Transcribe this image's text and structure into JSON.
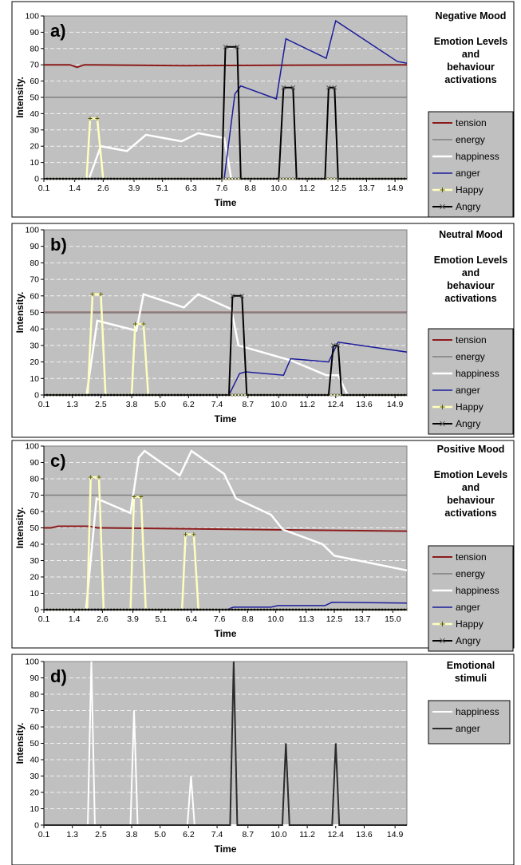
{
  "chart_data": [
    {
      "type": "line",
      "panel_label": "a)",
      "side_text": [
        "Negative Mood",
        "",
        "Emotion Levels",
        "and",
        "behaviour",
        "activations"
      ],
      "xlabel": "Time",
      "ylabel": "Intensity.",
      "xlim": [
        0.1,
        15.4
      ],
      "ylim": [
        0,
        100
      ],
      "yticks": [
        0,
        10,
        20,
        30,
        40,
        50,
        60,
        70,
        80,
        90,
        100
      ],
      "xtick_labels": [
        "0.1",
        "1.4",
        "2.6",
        "3.9",
        "5.1",
        "6.3",
        "7.6",
        "8.8",
        "10.0",
        "11.2",
        "12.5",
        "13.7",
        "14.9"
      ],
      "xtick_values": [
        0.1,
        1.4,
        2.6,
        3.9,
        5.1,
        6.3,
        7.6,
        8.8,
        10.0,
        11.2,
        12.5,
        13.7,
        14.9
      ],
      "series": [
        {
          "name": "tension",
          "color": "#8b1a1a",
          "width": 2,
          "x": [
            0.1,
            1.2,
            1.5,
            1.8,
            6.0,
            15.4
          ],
          "y": [
            70,
            70,
            68.5,
            70,
            69.5,
            70
          ]
        },
        {
          "name": "energy",
          "color": "#7f7f7f",
          "width": 1.5,
          "x": [
            0.1,
            15.4
          ],
          "y": [
            50,
            50
          ]
        },
        {
          "name": "happiness",
          "color": "#ffffff",
          "width": 2.5,
          "x": [
            0.1,
            2.0,
            2.5,
            3.6,
            4.4,
            5.9,
            6.6,
            7.7,
            8.0
          ],
          "y": [
            0,
            0,
            20,
            17,
            27,
            23,
            28,
            25,
            0
          ]
        },
        {
          "name": "anger",
          "color": "#1c1c9c",
          "width": 1.5,
          "x": [
            0.1,
            7.7,
            8.15,
            8.4,
            9.9,
            10.3,
            12.0,
            12.4,
            15.0,
            15.4
          ],
          "y": [
            0,
            0,
            52,
            57,
            49,
            86,
            74,
            97,
            72,
            71
          ]
        },
        {
          "name": "Happy",
          "color": "#ffffc0",
          "width": 2.5,
          "marker": "plus",
          "x": [
            0.1,
            1.9,
            2.05,
            2.35,
            2.6,
            15.4
          ],
          "y": [
            0,
            0,
            37,
            37,
            0,
            0
          ]
        },
        {
          "name": "Angry",
          "color": "#000000",
          "width": 2,
          "marker": "x",
          "x": [
            0.1,
            7.6,
            7.75,
            8.25,
            8.4,
            10.0,
            10.2,
            10.6,
            10.75,
            11.95,
            12.1,
            12.35,
            12.5,
            15.4
          ],
          "y": [
            0,
            0,
            81,
            81,
            0,
            0,
            56,
            56,
            0,
            0,
            56,
            56,
            0,
            0
          ]
        }
      ]
    },
    {
      "type": "line",
      "panel_label": "b)",
      "side_text": [
        "Neutral Mood",
        "",
        "Emotion Levels",
        "and",
        "behaviour",
        "activations"
      ],
      "xlabel": "Time",
      "ylabel": "Intensity.",
      "xlim": [
        0.1,
        15.4
      ],
      "ylim": [
        0,
        100
      ],
      "yticks": [
        0,
        10,
        20,
        30,
        40,
        50,
        60,
        70,
        80,
        90,
        100
      ],
      "xtick_labels": [
        "0.1",
        "1.3",
        "2.5",
        "3.8",
        "5.0",
        "6.2",
        "7.4",
        "8.7",
        "10.0",
        "11.2",
        "12.4",
        "13.6",
        "14.9"
      ],
      "xtick_values": [
        0.1,
        1.3,
        2.5,
        3.8,
        5.0,
        6.2,
        7.4,
        8.7,
        10.0,
        11.2,
        12.4,
        13.6,
        14.9
      ],
      "series": [
        {
          "name": "tension",
          "color": "#8b1a1a",
          "width": 2,
          "x": [
            0.1,
            12.3,
            12.7,
            15.4
          ],
          "y": [
            50,
            50,
            50,
            50
          ]
        },
        {
          "name": "energy",
          "color": "#7f7f7f",
          "width": 1.5,
          "x": [
            0.1,
            15.4
          ],
          "y": [
            50,
            50
          ]
        },
        {
          "name": "happiness",
          "color": "#ffffff",
          "width": 2.5,
          "x": [
            0.1,
            1.9,
            2.35,
            4.0,
            4.3,
            6.0,
            6.6,
            8.0,
            8.3,
            10.5,
            12.0,
            12.5,
            12.9,
            15.4
          ],
          "y": [
            0,
            0,
            45,
            39,
            61,
            53,
            61,
            52,
            30,
            21,
            12,
            12,
            0,
            0
          ]
        },
        {
          "name": "anger",
          "color": "#1c1c9c",
          "width": 1.5,
          "x": [
            0.1,
            7.9,
            8.35,
            8.6,
            10.2,
            10.5,
            12.1,
            12.5,
            15.4
          ],
          "y": [
            0,
            0,
            13,
            14,
            12,
            22,
            20,
            32,
            26
          ]
        },
        {
          "name": "Happy",
          "color": "#ffffc0",
          "width": 2.5,
          "marker": "plus",
          "x": [
            0.1,
            1.95,
            2.15,
            2.5,
            2.7,
            3.8,
            3.95,
            4.3,
            4.5,
            15.4
          ],
          "y": [
            0,
            0,
            61,
            61,
            0,
            0,
            43,
            43,
            0,
            0
          ]
        },
        {
          "name": "Angry",
          "color": "#000000",
          "width": 2,
          "marker": "x",
          "x": [
            0.1,
            7.9,
            8.05,
            8.45,
            8.65,
            12.1,
            12.3,
            12.5,
            12.65,
            15.4
          ],
          "y": [
            0,
            0,
            60,
            60,
            0,
            0,
            30,
            30,
            0,
            0
          ]
        }
      ]
    },
    {
      "type": "line",
      "panel_label": "c)",
      "side_text": [
        "Positive Mood",
        "",
        "Emotion Levels",
        "and",
        "behaviour",
        "activations"
      ],
      "xlabel": "Time",
      "ylabel": "Intensity.",
      "xlim": [
        0.1,
        15.6
      ],
      "ylim": [
        0,
        100
      ],
      "yticks": [
        0,
        10,
        20,
        30,
        40,
        50,
        60,
        70,
        80,
        90,
        100
      ],
      "xtick_labels": [
        "0.1",
        "1.4",
        "2.6",
        "3.9",
        "5.1",
        "6.4",
        "7.6",
        "8.8",
        "10.0",
        "11.3",
        "12.5",
        "13.7",
        "15.0"
      ],
      "xtick_values": [
        0.1,
        1.4,
        2.6,
        3.9,
        5.1,
        6.4,
        7.6,
        8.8,
        10.0,
        11.3,
        12.5,
        13.7,
        15.0
      ],
      "series": [
        {
          "name": "tension",
          "color": "#8b1a1a",
          "width": 2,
          "x": [
            0.1,
            0.4,
            0.7,
            2.0,
            2.4,
            15.6
          ],
          "y": [
            50,
            50,
            51,
            51,
            50,
            48
          ]
        },
        {
          "name": "energy",
          "color": "#7f7f7f",
          "width": 1.5,
          "x": [
            0.1,
            15.6
          ],
          "y": [
            70,
            70
          ]
        },
        {
          "name": "happiness",
          "color": "#ffffff",
          "width": 2.5,
          "x": [
            0.1,
            1.9,
            2.35,
            3.8,
            4.15,
            4.4,
            5.9,
            6.4,
            7.8,
            8.3,
            9.8,
            10.3,
            12.0,
            12.5,
            15.6
          ],
          "y": [
            0,
            0,
            68,
            59,
            93,
            97,
            82,
            97,
            83,
            68,
            58,
            49,
            40,
            33,
            24
          ]
        },
        {
          "name": "anger",
          "color": "#1c1c9c",
          "width": 1.5,
          "x": [
            0.1,
            7.9,
            8.2,
            9.8,
            10.1,
            12.1,
            12.4,
            15.6
          ],
          "y": [
            0,
            0,
            1.5,
            1.5,
            2.5,
            2.5,
            4.5,
            4
          ]
        },
        {
          "name": "Happy",
          "color": "#ffffc0",
          "width": 2.5,
          "marker": "plus",
          "x": [
            0.1,
            1.95,
            2.1,
            2.45,
            2.65,
            3.8,
            3.95,
            4.25,
            4.45,
            6.0,
            6.15,
            6.5,
            6.7,
            15.6
          ],
          "y": [
            0,
            0,
            81,
            81,
            0,
            0,
            69,
            69,
            0,
            0,
            46,
            46,
            0,
            0
          ]
        },
        {
          "name": "Angry",
          "color": "#000000",
          "width": 2,
          "marker": "x",
          "x": [
            0.1,
            15.6
          ],
          "y": [
            0,
            0
          ]
        }
      ]
    },
    {
      "type": "line",
      "panel_label": "d)",
      "side_text": [
        "Emotional",
        "stimuli"
      ],
      "xlabel": "Time",
      "ylabel": "Intensity.",
      "xlim": [
        0.1,
        15.4
      ],
      "ylim": [
        0,
        100
      ],
      "yticks": [
        0,
        10,
        20,
        30,
        40,
        50,
        60,
        70,
        80,
        90,
        100
      ],
      "xtick_labels": [
        "0.1",
        "1.3",
        "2.5",
        "3.8",
        "5.0",
        "6.2",
        "7.4",
        "8.7",
        "10.0",
        "11.2",
        "12.4",
        "13.6",
        "14.9"
      ],
      "xtick_values": [
        0.1,
        1.3,
        2.5,
        3.8,
        5.0,
        6.2,
        7.4,
        8.7,
        10.0,
        11.2,
        12.4,
        13.6,
        14.9
      ],
      "series": [
        {
          "name": "happiness",
          "color": "#ffffff",
          "width": 2,
          "x": [
            0.1,
            1.95,
            2.1,
            2.25,
            3.75,
            3.9,
            4.05,
            6.15,
            6.3,
            6.45,
            15.4
          ],
          "y": [
            0,
            0,
            100,
            0,
            0,
            70,
            0,
            0,
            30,
            0,
            0
          ]
        },
        {
          "name": "anger",
          "color": "#2b2b2b",
          "width": 2,
          "x": [
            0.1,
            7.95,
            8.1,
            8.25,
            10.15,
            10.3,
            10.45,
            12.25,
            12.4,
            12.55,
            15.4
          ],
          "y": [
            0,
            0,
            100,
            0,
            0,
            50,
            0,
            0,
            50,
            0,
            0
          ]
        }
      ]
    }
  ]
}
